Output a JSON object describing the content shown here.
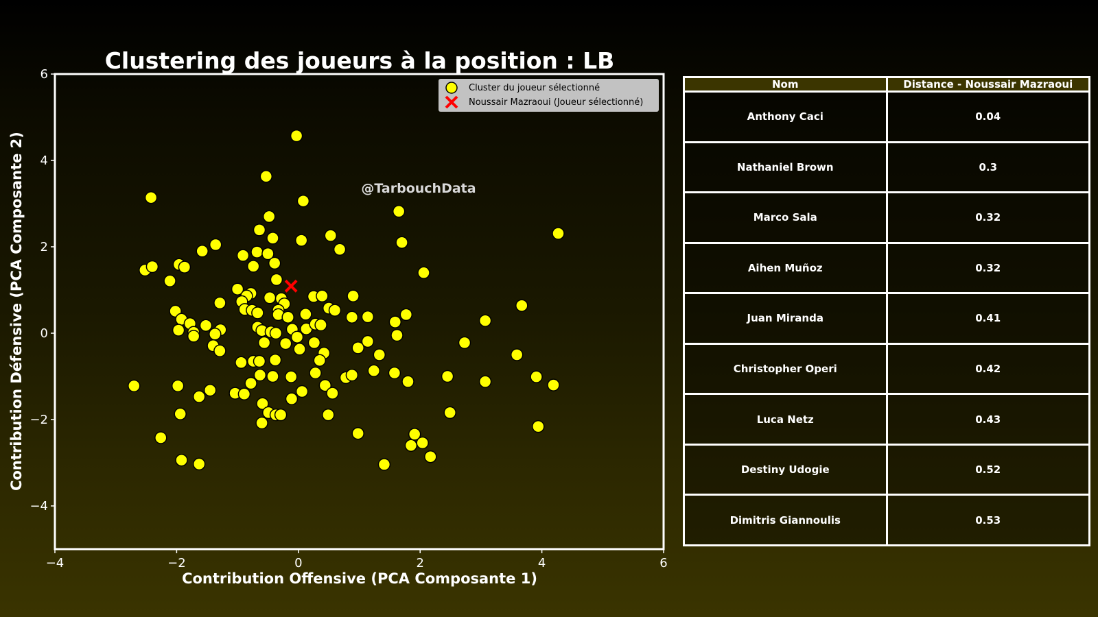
{
  "chart_data": {
    "type": "scatter",
    "title": "Clustering des joueurs à la position : LB",
    "xlabel": "Contribution Offensive (PCA Composante 1)",
    "ylabel": "Contribution Défensive (PCA Composante 2)",
    "xlim": [
      -4,
      6
    ],
    "ylim": [
      -5,
      6
    ],
    "xticks": [
      -4,
      -2,
      0,
      2,
      4,
      6
    ],
    "yticks": [
      -4,
      -2,
      0,
      2,
      4,
      6
    ],
    "grid": false,
    "legend_position": "top-right",
    "watermark": "@TarbouchData",
    "colors": {
      "cluster": "#ffff00",
      "selected": "#ff0000",
      "axes": "#ffffff"
    },
    "series": [
      {
        "name": "Cluster du joueur sélectionné",
        "marker": "circle",
        "points": [
          [
            -0.03,
            4.57
          ],
          [
            -2.42,
            3.14
          ],
          [
            -0.53,
            3.63
          ],
          [
            0.08,
            3.06
          ],
          [
            -0.48,
            2.7
          ],
          [
            1.65,
            2.82
          ],
          [
            -0.64,
            2.39
          ],
          [
            -0.42,
            2.2
          ],
          [
            0.53,
            2.26
          ],
          [
            4.27,
            2.31
          ],
          [
            1.7,
            2.1
          ],
          [
            0.05,
            2.15
          ],
          [
            0.68,
            1.94
          ],
          [
            -1.58,
            1.9
          ],
          [
            -1.36,
            2.05
          ],
          [
            -0.68,
            1.88
          ],
          [
            -0.5,
            1.84
          ],
          [
            -0.91,
            1.8
          ],
          [
            -2.52,
            1.46
          ],
          [
            -2.4,
            1.54
          ],
          [
            -1.96,
            1.59
          ],
          [
            -1.87,
            1.53
          ],
          [
            -0.74,
            1.55
          ],
          [
            -0.39,
            1.62
          ],
          [
            2.06,
            1.4
          ],
          [
            -2.11,
            1.21
          ],
          [
            -0.36,
            1.24
          ],
          [
            -1.0,
            1.02
          ],
          [
            -0.78,
            0.92
          ],
          [
            -0.85,
            0.86
          ],
          [
            -0.93,
            0.73
          ],
          [
            0.25,
            0.85
          ],
          [
            0.39,
            0.86
          ],
          [
            0.9,
            0.86
          ],
          [
            -0.47,
            0.82
          ],
          [
            -0.28,
            0.8
          ],
          [
            -1.29,
            0.7
          ],
          [
            -0.23,
            0.68
          ],
          [
            3.67,
            0.64
          ],
          [
            -0.88,
            0.55
          ],
          [
            -0.76,
            0.53
          ],
          [
            -0.67,
            0.47
          ],
          [
            -0.33,
            0.53
          ],
          [
            -0.33,
            0.43
          ],
          [
            -0.17,
            0.37
          ],
          [
            0.12,
            0.44
          ],
          [
            0.5,
            0.58
          ],
          [
            0.6,
            0.53
          ],
          [
            0.88,
            0.37
          ],
          [
            1.14,
            0.38
          ],
          [
            1.77,
            0.43
          ],
          [
            -2.02,
            0.51
          ],
          [
            -1.92,
            0.32
          ],
          [
            -1.78,
            0.22
          ],
          [
            -1.52,
            0.18
          ],
          [
            -1.97,
            0.07
          ],
          [
            -1.28,
            0.08
          ],
          [
            -0.67,
            0.14
          ],
          [
            -0.6,
            0.06
          ],
          [
            -0.45,
            0.03
          ],
          [
            -0.37,
            0.0
          ],
          [
            -0.1,
            0.09
          ],
          [
            0.13,
            0.1
          ],
          [
            0.28,
            0.21
          ],
          [
            0.37,
            0.19
          ],
          [
            1.59,
            0.26
          ],
          [
            3.07,
            0.29
          ],
          [
            -1.72,
            0.02
          ],
          [
            -1.72,
            -0.07
          ],
          [
            -1.37,
            -0.02
          ],
          [
            -0.02,
            -0.09
          ],
          [
            1.62,
            -0.05
          ],
          [
            2.73,
            -0.22
          ],
          [
            -1.4,
            -0.29
          ],
          [
            -1.29,
            -0.41
          ],
          [
            -0.56,
            -0.22
          ],
          [
            -0.21,
            -0.24
          ],
          [
            0.26,
            -0.22
          ],
          [
            0.02,
            -0.37
          ],
          [
            0.42,
            -0.46
          ],
          [
            0.98,
            -0.34
          ],
          [
            1.14,
            -0.19
          ],
          [
            1.33,
            -0.5
          ],
          [
            3.59,
            -0.5
          ],
          [
            -0.94,
            -0.68
          ],
          [
            -0.74,
            -0.65
          ],
          [
            -0.64,
            -0.65
          ],
          [
            -0.38,
            -0.62
          ],
          [
            0.35,
            -0.63
          ],
          [
            0.28,
            -0.92
          ],
          [
            1.24,
            -0.87
          ],
          [
            1.58,
            -0.92
          ],
          [
            -0.63,
            -0.97
          ],
          [
            -0.42,
            -1.0
          ],
          [
            -0.12,
            -1.01
          ],
          [
            0.78,
            -1.03
          ],
          [
            0.88,
            -0.97
          ],
          [
            1.8,
            -1.12
          ],
          [
            2.45,
            -1.0
          ],
          [
            3.07,
            -1.12
          ],
          [
            3.91,
            -1.01
          ],
          [
            4.19,
            -1.2
          ],
          [
            -2.7,
            -1.22
          ],
          [
            -1.98,
            -1.22
          ],
          [
            -1.45,
            -1.32
          ],
          [
            -1.63,
            -1.47
          ],
          [
            -1.04,
            -1.39
          ],
          [
            -0.89,
            -1.41
          ],
          [
            -0.78,
            -1.16
          ],
          [
            0.06,
            -1.35
          ],
          [
            0.44,
            -1.21
          ],
          [
            0.56,
            -1.39
          ],
          [
            -0.11,
            -1.52
          ],
          [
            -0.59,
            -1.63
          ],
          [
            -0.49,
            -1.84
          ],
          [
            -0.37,
            -1.89
          ],
          [
            -0.29,
            -1.89
          ],
          [
            0.49,
            -1.89
          ],
          [
            2.49,
            -1.84
          ],
          [
            -1.94,
            -1.87
          ],
          [
            -0.6,
            -2.08
          ],
          [
            0.98,
            -2.32
          ],
          [
            1.91,
            -2.34
          ],
          [
            1.85,
            -2.6
          ],
          [
            2.04,
            -2.54
          ],
          [
            2.17,
            -2.86
          ],
          [
            -2.26,
            -2.42
          ],
          [
            -1.92,
            -2.94
          ],
          [
            -1.63,
            -3.03
          ],
          [
            1.41,
            -3.04
          ],
          [
            3.94,
            -2.16
          ]
        ]
      },
      {
        "name": "Noussair Mazraoui (Joueur sélectionné)",
        "marker": "x",
        "points": [
          [
            -0.12,
            1.09
          ]
        ]
      }
    ]
  },
  "table": {
    "headers": [
      "Nom",
      "Distance - Noussair Mazraoui"
    ],
    "rows": [
      {
        "name": "Anthony Caci",
        "distance": "0.04"
      },
      {
        "name": "Nathaniel Brown",
        "distance": "0.3"
      },
      {
        "name": "Marco Sala",
        "distance": "0.32"
      },
      {
        "name": "Aihen Muñoz",
        "distance": "0.32"
      },
      {
        "name": "Juan Miranda",
        "distance": "0.41"
      },
      {
        "name": "Christopher Operi",
        "distance": "0.42"
      },
      {
        "name": "Luca Netz",
        "distance": "0.43"
      },
      {
        "name": "Destiny Udogie",
        "distance": "0.52"
      },
      {
        "name": "Dimitris Giannoulis",
        "distance": "0.53"
      }
    ]
  }
}
